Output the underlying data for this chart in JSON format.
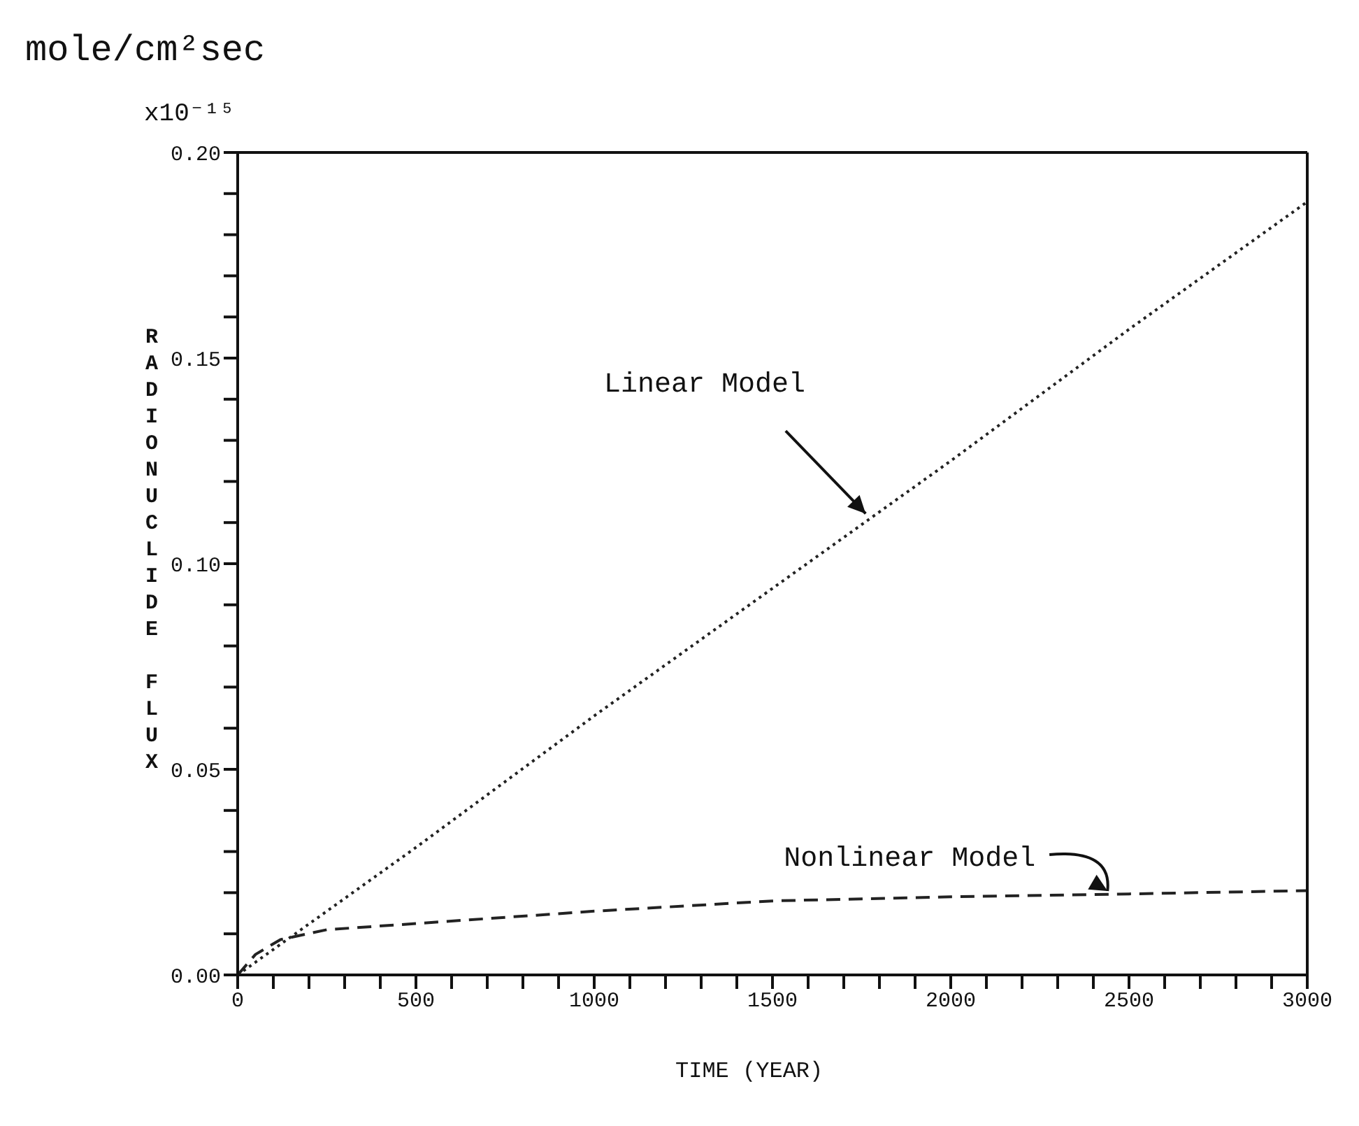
{
  "chart_data": {
    "type": "line",
    "xlabel": "TIME (YEAR)",
    "ylabel": "RADIONUCLIDE FLUX",
    "xlim": [
      0,
      3000
    ],
    "ylim": [
      0,
      0.2
    ],
    "xticks": [
      0,
      {
        "value": 100,
        "label": null
      },
      {
        "value": 200,
        "label": null
      },
      {
        "value": 300,
        "label": null
      },
      {
        "value": 400,
        "label": null
      },
      500,
      {
        "value": 600,
        "label": null
      },
      {
        "value": 700,
        "label": null
      },
      {
        "value": 800,
        "label": null
      },
      {
        "value": 900,
        "label": null
      },
      1000,
      {
        "value": 1100,
        "label": null
      },
      {
        "value": 1200,
        "label": null
      },
      {
        "value": 1300,
        "label": null
      },
      {
        "value": 1400,
        "label": null
      },
      1500,
      {
        "value": 1600,
        "label": null
      },
      {
        "value": 1700,
        "label": null
      },
      {
        "value": 1800,
        "label": null
      },
      {
        "value": 1900,
        "label": null
      },
      2000,
      {
        "value": 2100,
        "label": null
      },
      {
        "value": 2200,
        "label": null
      },
      {
        "value": 2300,
        "label": null
      },
      {
        "value": 2400,
        "label": null
      },
      2500,
      {
        "value": 2600,
        "label": null
      },
      {
        "value": 2700,
        "label": null
      },
      {
        "value": 2800,
        "label": null
      },
      {
        "value": 2900,
        "label": null
      },
      3000
    ],
    "yticks": [
      {
        "value": 0,
        "label": "0.00"
      },
      {
        "value": 0.01,
        "label": null
      },
      {
        "value": 0.02,
        "label": null
      },
      {
        "value": 0.03,
        "label": null
      },
      {
        "value": 0.04,
        "label": null
      },
      {
        "value": 0.05,
        "label": "0.05"
      },
      {
        "value": 0.06,
        "label": null
      },
      {
        "value": 0.07,
        "label": null
      },
      {
        "value": 0.08,
        "label": null
      },
      {
        "value": 0.09,
        "label": null
      },
      {
        "value": 0.1,
        "label": "0.10"
      },
      {
        "value": 0.11,
        "label": null
      },
      {
        "value": 0.12,
        "label": null
      },
      {
        "value": 0.13,
        "label": null
      },
      {
        "value": 0.14,
        "label": null
      },
      {
        "value": 0.15,
        "label": "0.15"
      },
      {
        "value": 0.16,
        "label": null
      },
      {
        "value": 0.17,
        "label": null
      },
      {
        "value": 0.18,
        "label": null
      },
      {
        "value": 0.19,
        "label": null
      },
      {
        "value": 0.2,
        "label": "0.20"
      }
    ],
    "series": [
      {
        "color": "#222222",
        "line_style": "dotted",
        "x": [
          0,
          500,
          1000,
          1500,
          2000,
          2500,
          3000
        ],
        "values": [
          0,
          0.031,
          0.063,
          0.094,
          0.125,
          0.157,
          0.188
        ]
      },
      {
        "color": "#222222",
        "line_style": "dashed",
        "x": [
          0,
          50,
          120,
          250,
          500,
          750,
          1000,
          1500,
          2000,
          2500,
          3000
        ],
        "values": [
          0,
          0.005,
          0.0086,
          0.011,
          0.0125,
          0.014,
          0.0155,
          0.018,
          0.019,
          0.0197,
          0.0205
        ]
      }
    ],
    "annotations": [
      "mole/cm²sec",
      "x10⁻¹⁵",
      {
        "text": "Linear Model",
        "x": 1770,
        "y": 0.111
      },
      {
        "text": "Nonlinear Model",
        "x": 2450,
        "y": 0.0197
      }
    ]
  }
}
